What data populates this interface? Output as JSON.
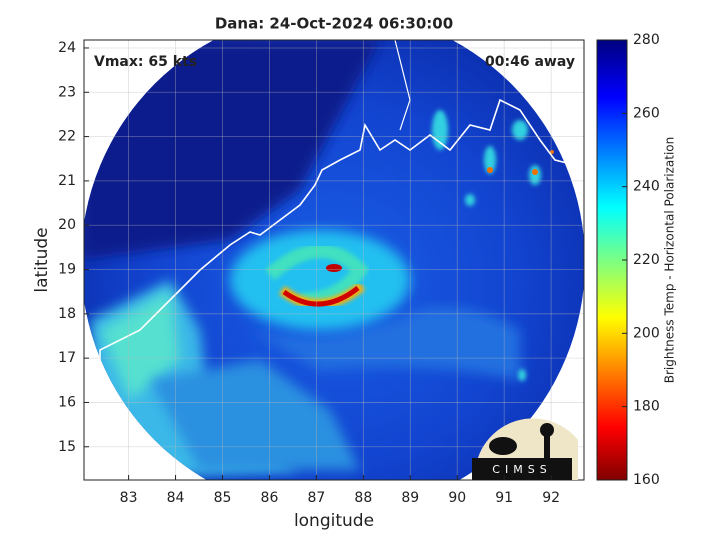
{
  "chart_data": {
    "type": "map",
    "title": "Dana: 24-Oct-2024 06:30:00",
    "annotations": {
      "left": "Vmax: 65 kts",
      "right": "00:46 away"
    },
    "xlabel": "longitude",
    "ylabel": "latitude",
    "xlim": [
      82.05,
      92.7
    ],
    "ylim": [
      14.25,
      24.18
    ],
    "xticks": [
      83,
      84,
      85,
      86,
      87,
      88,
      89,
      90,
      91,
      92
    ],
    "yticks": [
      15,
      16,
      17,
      18,
      19,
      20,
      21,
      22,
      23,
      24
    ],
    "grid": true,
    "colorbar": {
      "label": "Brightness Temp - Horizontal Polarization",
      "lim": [
        160,
        280
      ],
      "ticks": [
        160,
        180,
        200,
        220,
        240,
        260,
        280
      ]
    },
    "logo_text": "CIMSS"
  }
}
